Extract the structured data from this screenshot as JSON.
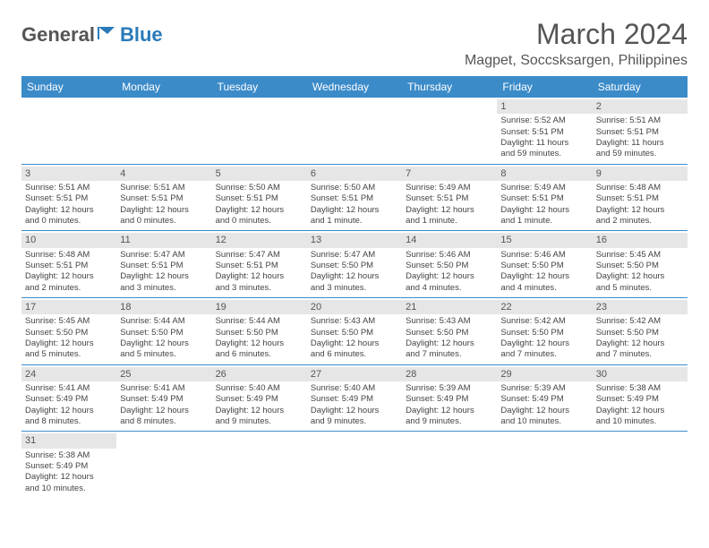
{
  "logo": {
    "general": "General",
    "blue": "Blue"
  },
  "title": {
    "month_year": "March 2024",
    "location": "Magpet, Soccsksargen, Philippines"
  },
  "colors": {
    "header_bg": "#3b8bc9",
    "header_text": "#ffffff",
    "daynum_bg": "#e6e6e6",
    "border": "#3b8bc9",
    "text": "#444444",
    "logo_blue": "#2a7ab9"
  },
  "weekdays": [
    "Sunday",
    "Monday",
    "Tuesday",
    "Wednesday",
    "Thursday",
    "Friday",
    "Saturday"
  ],
  "weeks": [
    [
      null,
      null,
      null,
      null,
      null,
      {
        "n": "1",
        "rise": "Sunrise: 5:52 AM",
        "set": "Sunset: 5:51 PM",
        "d1": "Daylight: 11 hours",
        "d2": "and 59 minutes."
      },
      {
        "n": "2",
        "rise": "Sunrise: 5:51 AM",
        "set": "Sunset: 5:51 PM",
        "d1": "Daylight: 11 hours",
        "d2": "and 59 minutes."
      }
    ],
    [
      {
        "n": "3",
        "rise": "Sunrise: 5:51 AM",
        "set": "Sunset: 5:51 PM",
        "d1": "Daylight: 12 hours",
        "d2": "and 0 minutes."
      },
      {
        "n": "4",
        "rise": "Sunrise: 5:51 AM",
        "set": "Sunset: 5:51 PM",
        "d1": "Daylight: 12 hours",
        "d2": "and 0 minutes."
      },
      {
        "n": "5",
        "rise": "Sunrise: 5:50 AM",
        "set": "Sunset: 5:51 PM",
        "d1": "Daylight: 12 hours",
        "d2": "and 0 minutes."
      },
      {
        "n": "6",
        "rise": "Sunrise: 5:50 AM",
        "set": "Sunset: 5:51 PM",
        "d1": "Daylight: 12 hours",
        "d2": "and 1 minute."
      },
      {
        "n": "7",
        "rise": "Sunrise: 5:49 AM",
        "set": "Sunset: 5:51 PM",
        "d1": "Daylight: 12 hours",
        "d2": "and 1 minute."
      },
      {
        "n": "8",
        "rise": "Sunrise: 5:49 AM",
        "set": "Sunset: 5:51 PM",
        "d1": "Daylight: 12 hours",
        "d2": "and 1 minute."
      },
      {
        "n": "9",
        "rise": "Sunrise: 5:48 AM",
        "set": "Sunset: 5:51 PM",
        "d1": "Daylight: 12 hours",
        "d2": "and 2 minutes."
      }
    ],
    [
      {
        "n": "10",
        "rise": "Sunrise: 5:48 AM",
        "set": "Sunset: 5:51 PM",
        "d1": "Daylight: 12 hours",
        "d2": "and 2 minutes."
      },
      {
        "n": "11",
        "rise": "Sunrise: 5:47 AM",
        "set": "Sunset: 5:51 PM",
        "d1": "Daylight: 12 hours",
        "d2": "and 3 minutes."
      },
      {
        "n": "12",
        "rise": "Sunrise: 5:47 AM",
        "set": "Sunset: 5:51 PM",
        "d1": "Daylight: 12 hours",
        "d2": "and 3 minutes."
      },
      {
        "n": "13",
        "rise": "Sunrise: 5:47 AM",
        "set": "Sunset: 5:50 PM",
        "d1": "Daylight: 12 hours",
        "d2": "and 3 minutes."
      },
      {
        "n": "14",
        "rise": "Sunrise: 5:46 AM",
        "set": "Sunset: 5:50 PM",
        "d1": "Daylight: 12 hours",
        "d2": "and 4 minutes."
      },
      {
        "n": "15",
        "rise": "Sunrise: 5:46 AM",
        "set": "Sunset: 5:50 PM",
        "d1": "Daylight: 12 hours",
        "d2": "and 4 minutes."
      },
      {
        "n": "16",
        "rise": "Sunrise: 5:45 AM",
        "set": "Sunset: 5:50 PM",
        "d1": "Daylight: 12 hours",
        "d2": "and 5 minutes."
      }
    ],
    [
      {
        "n": "17",
        "rise": "Sunrise: 5:45 AM",
        "set": "Sunset: 5:50 PM",
        "d1": "Daylight: 12 hours",
        "d2": "and 5 minutes."
      },
      {
        "n": "18",
        "rise": "Sunrise: 5:44 AM",
        "set": "Sunset: 5:50 PM",
        "d1": "Daylight: 12 hours",
        "d2": "and 5 minutes."
      },
      {
        "n": "19",
        "rise": "Sunrise: 5:44 AM",
        "set": "Sunset: 5:50 PM",
        "d1": "Daylight: 12 hours",
        "d2": "and 6 minutes."
      },
      {
        "n": "20",
        "rise": "Sunrise: 5:43 AM",
        "set": "Sunset: 5:50 PM",
        "d1": "Daylight: 12 hours",
        "d2": "and 6 minutes."
      },
      {
        "n": "21",
        "rise": "Sunrise: 5:43 AM",
        "set": "Sunset: 5:50 PM",
        "d1": "Daylight: 12 hours",
        "d2": "and 7 minutes."
      },
      {
        "n": "22",
        "rise": "Sunrise: 5:42 AM",
        "set": "Sunset: 5:50 PM",
        "d1": "Daylight: 12 hours",
        "d2": "and 7 minutes."
      },
      {
        "n": "23",
        "rise": "Sunrise: 5:42 AM",
        "set": "Sunset: 5:50 PM",
        "d1": "Daylight: 12 hours",
        "d2": "and 7 minutes."
      }
    ],
    [
      {
        "n": "24",
        "rise": "Sunrise: 5:41 AM",
        "set": "Sunset: 5:49 PM",
        "d1": "Daylight: 12 hours",
        "d2": "and 8 minutes."
      },
      {
        "n": "25",
        "rise": "Sunrise: 5:41 AM",
        "set": "Sunset: 5:49 PM",
        "d1": "Daylight: 12 hours",
        "d2": "and 8 minutes."
      },
      {
        "n": "26",
        "rise": "Sunrise: 5:40 AM",
        "set": "Sunset: 5:49 PM",
        "d1": "Daylight: 12 hours",
        "d2": "and 9 minutes."
      },
      {
        "n": "27",
        "rise": "Sunrise: 5:40 AM",
        "set": "Sunset: 5:49 PM",
        "d1": "Daylight: 12 hours",
        "d2": "and 9 minutes."
      },
      {
        "n": "28",
        "rise": "Sunrise: 5:39 AM",
        "set": "Sunset: 5:49 PM",
        "d1": "Daylight: 12 hours",
        "d2": "and 9 minutes."
      },
      {
        "n": "29",
        "rise": "Sunrise: 5:39 AM",
        "set": "Sunset: 5:49 PM",
        "d1": "Daylight: 12 hours",
        "d2": "and 10 minutes."
      },
      {
        "n": "30",
        "rise": "Sunrise: 5:38 AM",
        "set": "Sunset: 5:49 PM",
        "d1": "Daylight: 12 hours",
        "d2": "and 10 minutes."
      }
    ],
    [
      {
        "n": "31",
        "rise": "Sunrise: 5:38 AM",
        "set": "Sunset: 5:49 PM",
        "d1": "Daylight: 12 hours",
        "d2": "and 10 minutes."
      },
      null,
      null,
      null,
      null,
      null,
      null
    ]
  ]
}
